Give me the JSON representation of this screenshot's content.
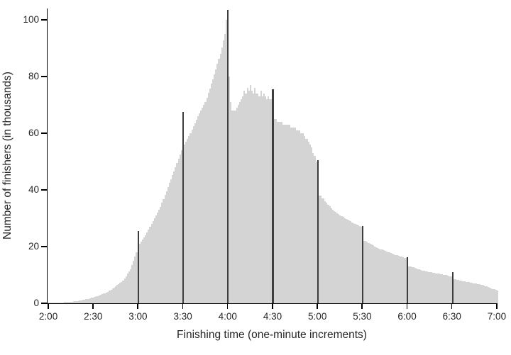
{
  "chart_data": {
    "type": "bar",
    "xlabel": "Finishing time (one-minute increments)",
    "ylabel": "Number of finishers (in thousands)",
    "x_tick_labels": [
      "2:00",
      "2:30",
      "3:00",
      "3:30",
      "4:00",
      "4:30",
      "5:00",
      "5:30",
      "6:00",
      "6:30",
      "7:00"
    ],
    "x_start_label": "2:00",
    "x_end_label": "7:00",
    "minutes_per_bar": 1,
    "y_ticks": [
      0,
      20,
      40,
      60,
      80,
      100
    ],
    "ylim": [
      0,
      104
    ],
    "grid": "off",
    "legend": "none",
    "bar_color": "#d4d4d4",
    "spike_color": "#3d3d3d",
    "axis_color": "#000000",
    "text_color": "#262626",
    "spike_minute_indices": [
      60,
      90,
      120,
      150,
      180,
      210,
      240,
      270
    ],
    "values": [
      0.2,
      0.2,
      0.2,
      0.2,
      0.2,
      0.3,
      0.3,
      0.3,
      0.3,
      0.3,
      0.3,
      0.4,
      0.4,
      0.5,
      0.5,
      0.6,
      0.6,
      0.7,
      0.7,
      0.8,
      0.8,
      0.9,
      1.0,
      1.2,
      1.3,
      1.4,
      1.5,
      1.6,
      1.8,
      1.9,
      2.0,
      2.2,
      2.4,
      2.6,
      2.8,
      3.0,
      3.2,
      3.4,
      3.6,
      3.8,
      4.0,
      4.4,
      4.8,
      5.2,
      5.6,
      6.0,
      6.4,
      6.8,
      7.2,
      7.6,
      8.0,
      8.8,
      9.6,
      10.4,
      11.2,
      12.0,
      13.5,
      15.0,
      16.5,
      18.0,
      25.5,
      21.0,
      21.8,
      22.5,
      23.3,
      24.0,
      25.0,
      26.0,
      27.0,
      28.0,
      29.0,
      30.0,
      31.0,
      32.0,
      33.0,
      34.0,
      35.4,
      36.8,
      38.2,
      39.6,
      41.0,
      42.4,
      43.8,
      45.2,
      46.6,
      48.0,
      49.5,
      51.0,
      52.5,
      54.0,
      67.5,
      56.0,
      57.0,
      58.0,
      59.0,
      60.0,
      61.2,
      62.4,
      63.6,
      64.8,
      66.0,
      67.0,
      68.0,
      69.0,
      70.0,
      71.0,
      72.6,
      74.2,
      75.8,
      77.4,
      79.0,
      80.8,
      82.6,
      84.4,
      86.2,
      88.0,
      90.3,
      92.7,
      95.0,
      100.0,
      103.5,
      80.0,
      71.0,
      68.0,
      68.0,
      68.0,
      69.0,
      70.0,
      71.0,
      72.0,
      73.0,
      75.0,
      74.0,
      76.0,
      75.0,
      77.0,
      75.0,
      74.0,
      76.0,
      74.0,
      74.0,
      73.0,
      75.0,
      73.0,
      74.0,
      73.0,
      72.0,
      73.0,
      72.0,
      72.0,
      75.5,
      65.0,
      65.0,
      64.0,
      64.0,
      64.0,
      64.0,
      63.0,
      63.0,
      63.0,
      63.0,
      63.0,
      62.0,
      62.0,
      62.0,
      62.0,
      61.0,
      61.0,
      61.0,
      60.0,
      60.0,
      59.0,
      58.0,
      58.0,
      57.0,
      56.0,
      55.0,
      53.0,
      52.0,
      50.0,
      50.5,
      38.0,
      38.0,
      37.0,
      37.0,
      36.0,
      35.4,
      34.8,
      34.2,
      33.6,
      33.0,
      32.6,
      32.2,
      31.8,
      31.4,
      31.0,
      30.7,
      30.4,
      30.1,
      29.8,
      29.5,
      29.2,
      28.9,
      28.6,
      28.3,
      28.0,
      27.8,
      27.5,
      27.2,
      27.0,
      27.2,
      22.0,
      22.0,
      21.7,
      21.3,
      21.0,
      20.7,
      20.4,
      20.1,
      19.8,
      19.5,
      19.3,
      19.1,
      18.9,
      18.7,
      18.5,
      18.3,
      18.1,
      17.9,
      17.7,
      17.5,
      17.3,
      17.1,
      16.9,
      16.7,
      16.5,
      16.4,
      16.3,
      16.1,
      16.0,
      16.3,
      13.0,
      13.0,
      12.8,
      12.7,
      12.5,
      12.3,
      12.1,
      11.9,
      11.7,
      11.5,
      11.4,
      11.3,
      11.2,
      11.1,
      11.0,
      10.9,
      10.8,
      10.7,
      10.6,
      10.5,
      10.4,
      10.3,
      10.2,
      10.1,
      10.0,
      9.9,
      9.8,
      9.6,
      9.5,
      11.0,
      8.5,
      8.4,
      8.3,
      8.2,
      8.0,
      7.9,
      7.8,
      7.7,
      7.6,
      7.5,
      7.4,
      7.3,
      7.2,
      7.1,
      7.0,
      6.9,
      6.8,
      6.7,
      6.6,
      6.5,
      6.3,
      6.1,
      5.9,
      5.7,
      5.5,
      5.3,
      5.1,
      4.9,
      4.7,
      4.5
    ]
  }
}
